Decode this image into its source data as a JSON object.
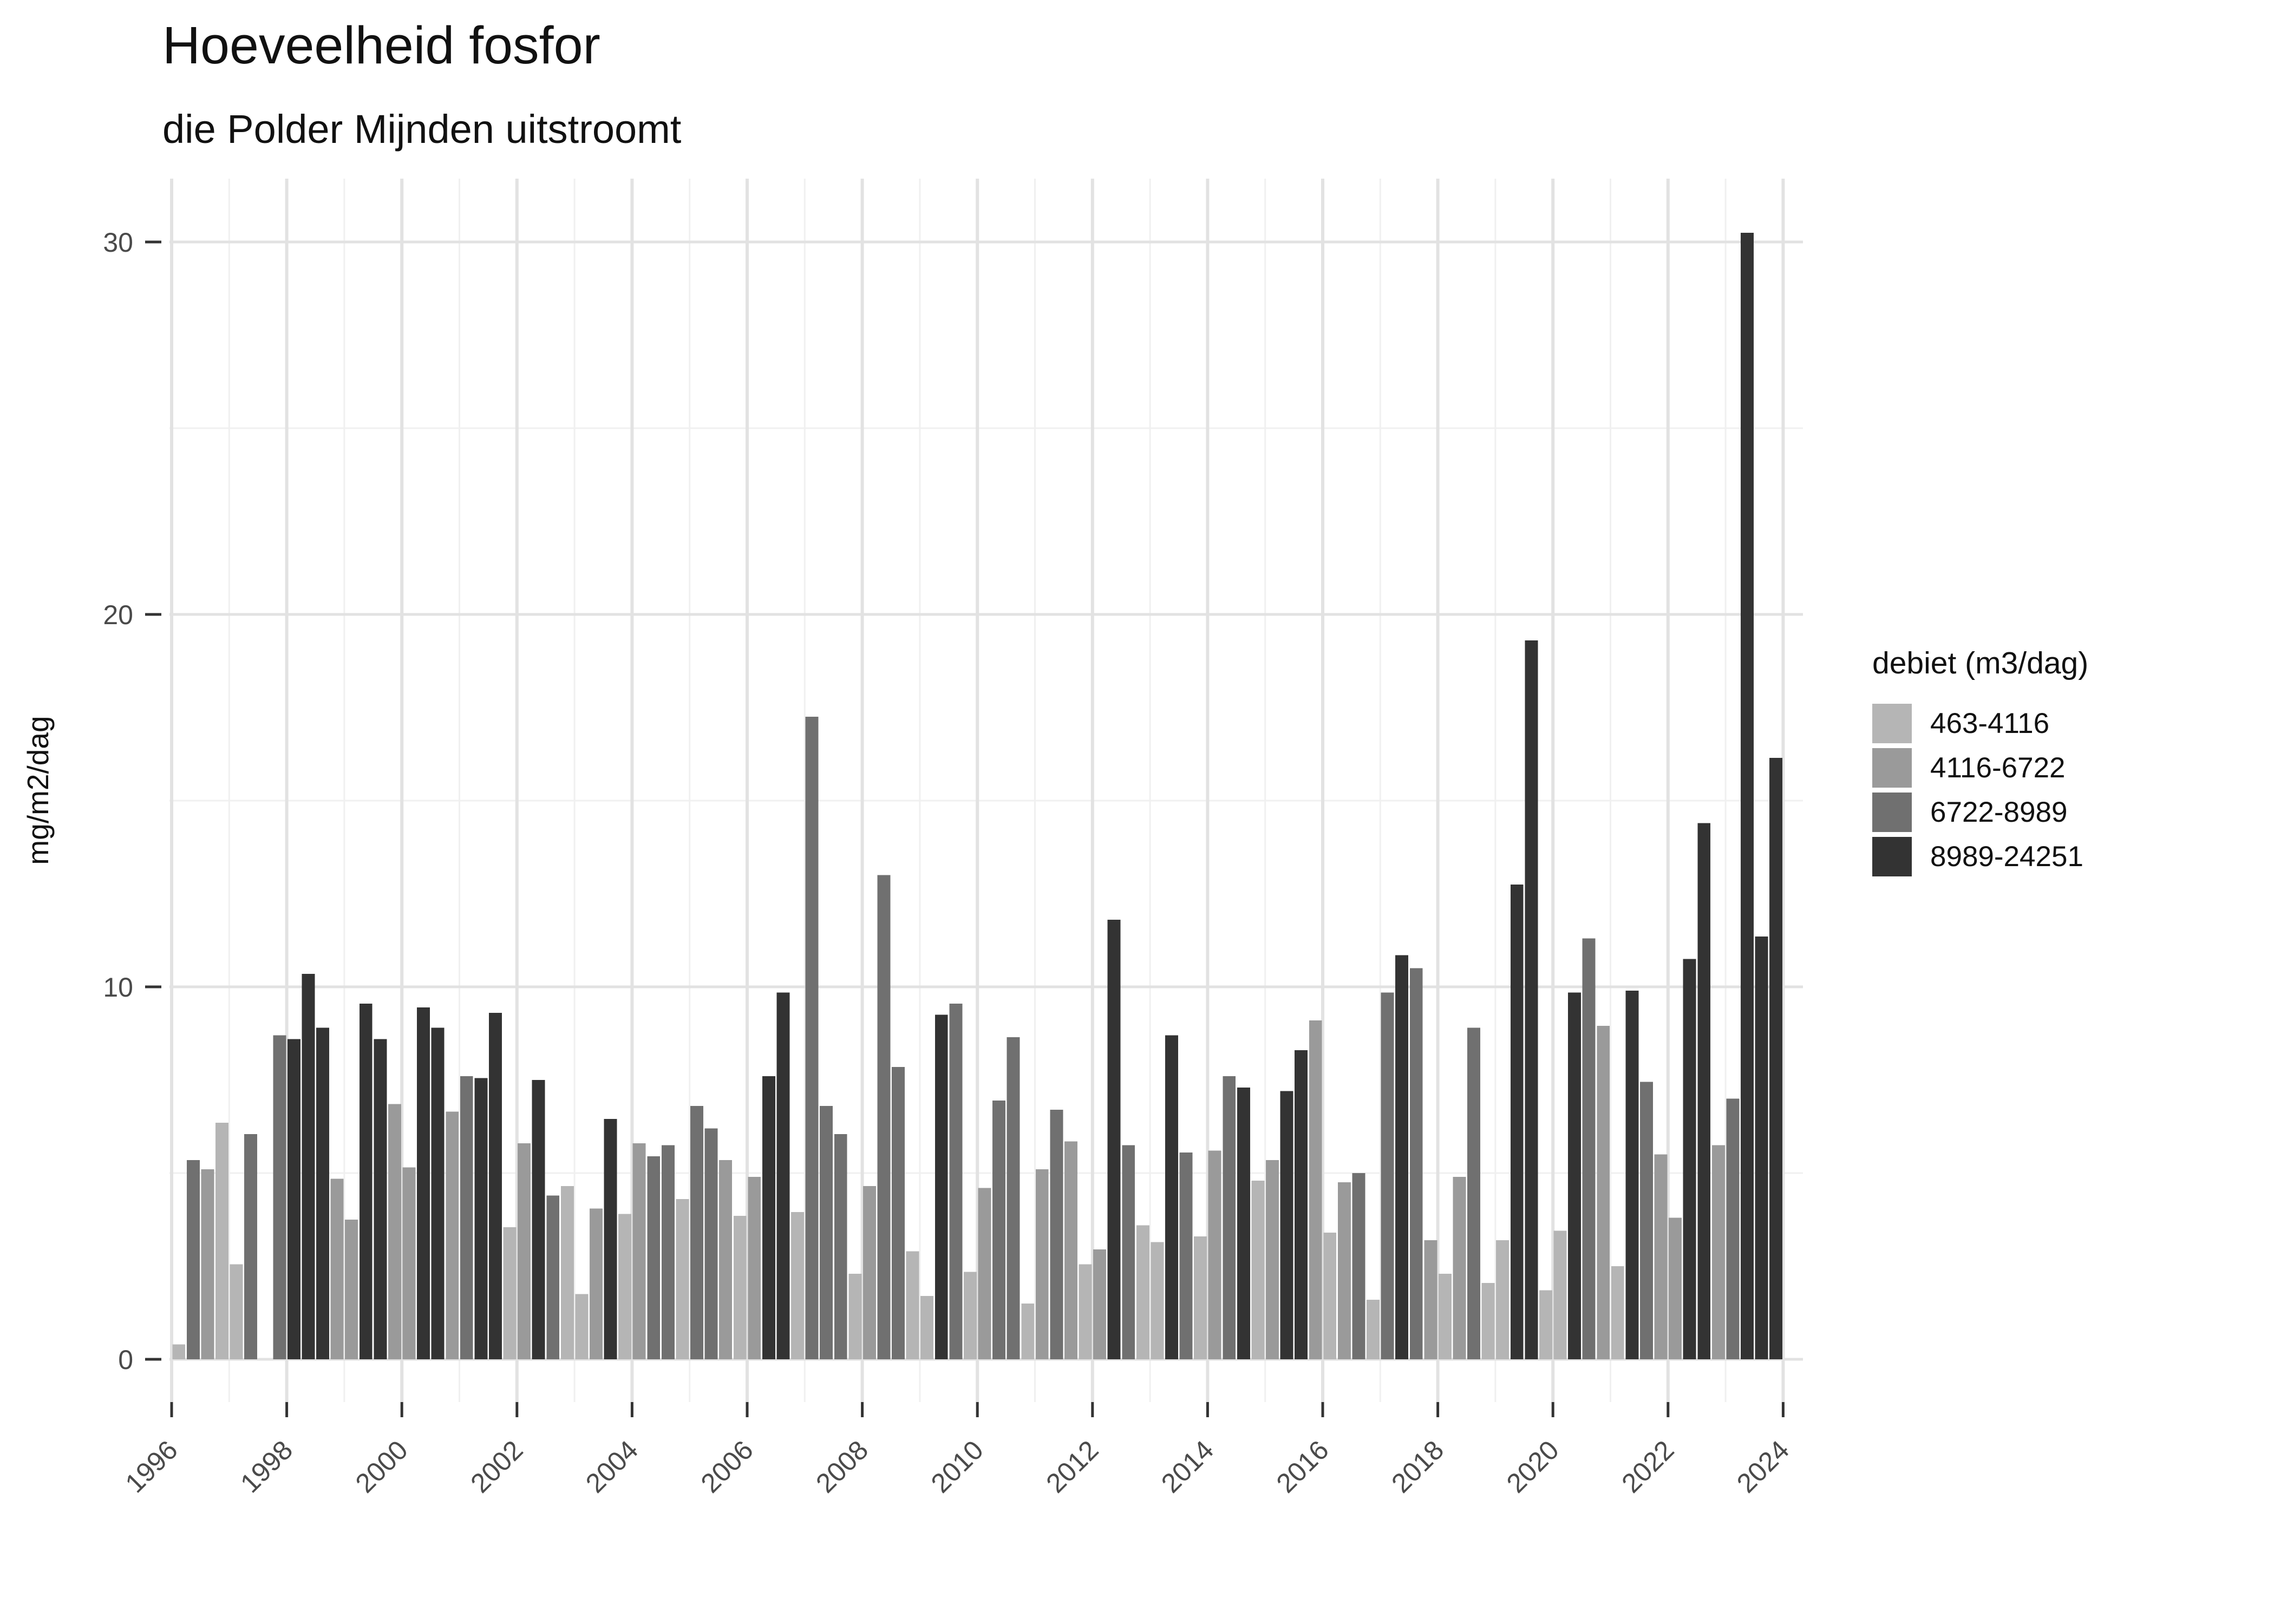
{
  "title": "Hoeveelheid fosfor",
  "subtitle": "die Polder Mijnden uitstroomt",
  "chart_data": {
    "type": "bar",
    "title": "Hoeveelheid fosfor",
    "subtitle": "die Polder Mijnden uitstroomt",
    "xlabel": "",
    "ylabel": "mg/m2/dag",
    "ylim": [
      0,
      30.5
    ],
    "y_ticks": [
      0,
      10,
      20,
      30
    ],
    "y_minor_gridlines": [
      5,
      15,
      25
    ],
    "x_ticks": [
      1996,
      1998,
      2000,
      2002,
      2004,
      2006,
      2008,
      2010,
      2012,
      2014,
      2016,
      2018,
      2020,
      2022,
      2024
    ],
    "x_tick_rotation_deg": 45,
    "grid": true,
    "legend_position": "right",
    "legend_title": "debiet (m3/dag)",
    "categories": [
      {
        "label": "463-4116",
        "color": "#b5b5b5"
      },
      {
        "label": "4116-6722",
        "color": "#9a9a9a"
      },
      {
        "label": "6722-8989",
        "color": "#707070"
      },
      {
        "label": "8989-24251",
        "color": "#333333"
      }
    ],
    "bar_unit": "quarter",
    "bars_format": [
      "year",
      "quarter",
      "category_index_1based",
      "value_mg_m2_dag"
    ],
    "bars": [
      [
        1996,
        1,
        1,
        0.4
      ],
      [
        1996,
        2,
        3,
        5.35
      ],
      [
        1996,
        3,
        2,
        5.1
      ],
      [
        1996,
        4,
        1,
        6.35
      ],
      [
        1997,
        1,
        1,
        2.55
      ],
      [
        1997,
        2,
        3,
        6.05
      ],
      [
        1997,
        4,
        3,
        8.7
      ],
      [
        1998,
        1,
        4,
        8.6
      ],
      [
        1998,
        2,
        4,
        10.35
      ],
      [
        1998,
        3,
        4,
        8.9
      ],
      [
        1998,
        4,
        2,
        4.85
      ],
      [
        1999,
        1,
        2,
        3.75
      ],
      [
        1999,
        2,
        4,
        9.55
      ],
      [
        1999,
        3,
        4,
        8.6
      ],
      [
        1999,
        4,
        2,
        6.85
      ],
      [
        2000,
        1,
        2,
        5.15
      ],
      [
        2000,
        2,
        4,
        9.45
      ],
      [
        2000,
        3,
        4,
        8.9
      ],
      [
        2000,
        4,
        2,
        6.65
      ],
      [
        2001,
        1,
        3,
        7.6
      ],
      [
        2001,
        2,
        4,
        7.55
      ],
      [
        2001,
        3,
        4,
        9.3
      ],
      [
        2001,
        4,
        1,
        3.55
      ],
      [
        2002,
        1,
        2,
        5.8
      ],
      [
        2002,
        2,
        4,
        7.5
      ],
      [
        2002,
        3,
        3,
        4.4
      ],
      [
        2002,
        4,
        1,
        4.65
      ],
      [
        2003,
        1,
        1,
        1.75
      ],
      [
        2003,
        2,
        2,
        4.05
      ],
      [
        2003,
        3,
        4,
        6.45
      ],
      [
        2003,
        4,
        1,
        3.9
      ],
      [
        2004,
        1,
        2,
        5.8
      ],
      [
        2004,
        2,
        3,
        5.45
      ],
      [
        2004,
        3,
        3,
        5.75
      ],
      [
        2004,
        4,
        1,
        4.3
      ],
      [
        2005,
        1,
        3,
        6.8
      ],
      [
        2005,
        2,
        3,
        6.2
      ],
      [
        2005,
        3,
        2,
        5.35
      ],
      [
        2005,
        4,
        1,
        3.85
      ],
      [
        2006,
        1,
        2,
        4.9
      ],
      [
        2006,
        2,
        4,
        7.6
      ],
      [
        2006,
        3,
        4,
        9.85
      ],
      [
        2006,
        4,
        1,
        3.95
      ],
      [
        2007,
        1,
        3,
        17.25
      ],
      [
        2007,
        2,
        3,
        6.8
      ],
      [
        2007,
        3,
        3,
        6.05
      ],
      [
        2007,
        4,
        1,
        2.3
      ],
      [
        2008,
        1,
        2,
        4.65
      ],
      [
        2008,
        2,
        3,
        13.0
      ],
      [
        2008,
        3,
        3,
        7.85
      ],
      [
        2008,
        4,
        1,
        2.9
      ],
      [
        2009,
        1,
        1,
        1.7
      ],
      [
        2009,
        2,
        4,
        9.25
      ],
      [
        2009,
        3,
        3,
        9.55
      ],
      [
        2009,
        4,
        1,
        2.35
      ],
      [
        2010,
        1,
        2,
        4.6
      ],
      [
        2010,
        2,
        3,
        6.95
      ],
      [
        2010,
        3,
        3,
        8.65
      ],
      [
        2010,
        4,
        1,
        1.5
      ],
      [
        2011,
        1,
        2,
        5.1
      ],
      [
        2011,
        2,
        3,
        6.7
      ],
      [
        2011,
        3,
        2,
        5.85
      ],
      [
        2011,
        4,
        1,
        2.55
      ],
      [
        2012,
        1,
        2,
        2.95
      ],
      [
        2012,
        2,
        4,
        11.8
      ],
      [
        2012,
        3,
        3,
        5.75
      ],
      [
        2012,
        4,
        1,
        3.6
      ],
      [
        2013,
        1,
        1,
        3.15
      ],
      [
        2013,
        2,
        4,
        8.7
      ],
      [
        2013,
        3,
        3,
        5.55
      ],
      [
        2013,
        4,
        1,
        3.3
      ],
      [
        2014,
        1,
        2,
        5.6
      ],
      [
        2014,
        2,
        3,
        7.6
      ],
      [
        2014,
        3,
        4,
        7.3
      ],
      [
        2014,
        4,
        1,
        4.8
      ],
      [
        2015,
        1,
        2,
        5.35
      ],
      [
        2015,
        2,
        4,
        7.2
      ],
      [
        2015,
        3,
        4,
        8.3
      ],
      [
        2015,
        4,
        2,
        9.1
      ],
      [
        2016,
        1,
        1,
        3.4
      ],
      [
        2016,
        2,
        2,
        4.75
      ],
      [
        2016,
        3,
        3,
        5.0
      ],
      [
        2016,
        4,
        1,
        1.6
      ],
      [
        2017,
        1,
        3,
        9.85
      ],
      [
        2017,
        2,
        4,
        10.85
      ],
      [
        2017,
        3,
        3,
        10.5
      ],
      [
        2017,
        4,
        2,
        3.2
      ],
      [
        2018,
        1,
        1,
        2.3
      ],
      [
        2018,
        2,
        2,
        4.9
      ],
      [
        2018,
        3,
        3,
        8.9
      ],
      [
        2018,
        4,
        1,
        2.05
      ],
      [
        2019,
        1,
        1,
        3.2
      ],
      [
        2019,
        2,
        4,
        12.75
      ],
      [
        2019,
        3,
        4,
        19.3
      ],
      [
        2019,
        4,
        1,
        1.85
      ],
      [
        2020,
        1,
        1,
        3.45
      ],
      [
        2020,
        2,
        4,
        9.85
      ],
      [
        2020,
        3,
        3,
        11.3
      ],
      [
        2020,
        4,
        2,
        8.95
      ],
      [
        2021,
        1,
        1,
        2.5
      ],
      [
        2021,
        2,
        4,
        9.9
      ],
      [
        2021,
        3,
        3,
        7.45
      ],
      [
        2021,
        4,
        2,
        5.5
      ],
      [
        2022,
        1,
        2,
        3.8
      ],
      [
        2022,
        2,
        4,
        10.75
      ],
      [
        2022,
        3,
        4,
        14.4
      ],
      [
        2022,
        4,
        2,
        5.75
      ],
      [
        2023,
        1,
        3,
        7.0
      ],
      [
        2023,
        2,
        4,
        30.25
      ],
      [
        2023,
        3,
        4,
        11.35
      ],
      [
        2023,
        4,
        4,
        16.15
      ]
    ]
  }
}
